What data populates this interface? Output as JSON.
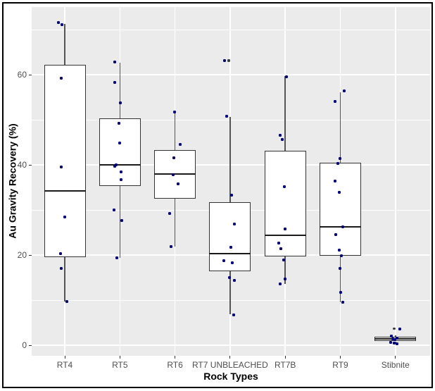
{
  "figure": {
    "background": "#ffffff",
    "frame_color": "#000000"
  },
  "chart_data": {
    "type": "boxplot",
    "title": "",
    "xlabel": "Rock Types",
    "ylabel": "Au Gravity Recovery (%)",
    "ylim": [
      -2.3,
      75.0
    ],
    "y_major_ticks": [
      0,
      20,
      40,
      60
    ],
    "y_minor_ticks": [
      10,
      30,
      50,
      70
    ],
    "grid": "on",
    "legend": "none",
    "colors": {
      "panel_bg": "#EBEBEB",
      "grid": "#FFFFFF",
      "box_fill": "#FFFFFF",
      "box_border": "#333333",
      "median": "#1a1a1a",
      "whisker": "#555555",
      "jitter_point": "#000080",
      "outlier_point": "#3d3d3d",
      "axis_text": "#4d4d4d",
      "axis_title": "#000000"
    },
    "categories": [
      "RT4",
      "RT5",
      "RT6",
      "RT7 UNBLEACHED",
      "RT7B",
      "RT9",
      "Stibnite"
    ],
    "boxes": [
      {
        "category": "RT4",
        "whisker_low": 9.7,
        "q1": 19.5,
        "median": 34.2,
        "q3": 62.2,
        "whisker_high": 71.3,
        "outliers": [],
        "points": [
          {
            "v": 71.5,
            "dx": -9
          },
          {
            "v": 71.1,
            "dx": -4
          },
          {
            "v": 59.3,
            "dx": -5
          },
          {
            "v": 39.5,
            "dx": -5
          },
          {
            "v": 28.5,
            "dx": 0
          },
          {
            "v": 20.4,
            "dx": -6
          },
          {
            "v": 17.0,
            "dx": -5
          },
          {
            "v": 9.7,
            "dx": 3
          }
        ]
      },
      {
        "category": "RT5",
        "whisker_low": 19.4,
        "q1": 35.3,
        "median": 40.0,
        "q3": 50.3,
        "whisker_high": 62.6,
        "outliers": [],
        "points": [
          {
            "v": 62.8,
            "dx": -7
          },
          {
            "v": 58.3,
            "dx": -7
          },
          {
            "v": 53.8,
            "dx": 1
          },
          {
            "v": 49.2,
            "dx": -1
          },
          {
            "v": 44.8,
            "dx": 0
          },
          {
            "v": 40.0,
            "dx": -5
          },
          {
            "v": 39.7,
            "dx": -7
          },
          {
            "v": 38.4,
            "dx": 2
          },
          {
            "v": 36.8,
            "dx": 2
          },
          {
            "v": 30.1,
            "dx": -8
          },
          {
            "v": 27.7,
            "dx": 3
          },
          {
            "v": 19.4,
            "dx": -4
          }
        ]
      },
      {
        "category": "RT6",
        "whisker_low": 21.9,
        "q1": 32.5,
        "median": 38.0,
        "q3": 43.3,
        "whisker_high": 51.8,
        "outliers": [],
        "points": [
          {
            "v": 51.8,
            "dx": -1
          },
          {
            "v": 44.5,
            "dx": 7
          },
          {
            "v": 41.6,
            "dx": -2
          },
          {
            "v": 37.9,
            "dx": -3
          },
          {
            "v": 35.8,
            "dx": 4
          },
          {
            "v": 29.3,
            "dx": -8
          },
          {
            "v": 21.9,
            "dx": -6
          }
        ]
      },
      {
        "category": "RT7 UNBLEACHED",
        "whisker_low": 6.9,
        "q1": 16.4,
        "median": 20.3,
        "q3": 31.7,
        "whisker_high": 50.6,
        "outliers": [
          {
            "v": 63.1,
            "dx": -2
          }
        ],
        "points": [
          {
            "v": 63.1,
            "dx": -8
          },
          {
            "v": 50.8,
            "dx": -5
          },
          {
            "v": 33.3,
            "dx": 2
          },
          {
            "v": 26.9,
            "dx": 6
          },
          {
            "v": 21.8,
            "dx": 1
          },
          {
            "v": 18.8,
            "dx": -9
          },
          {
            "v": 18.3,
            "dx": 3
          },
          {
            "v": 15.1,
            "dx": -1
          },
          {
            "v": 14.4,
            "dx": 6
          },
          {
            "v": 6.8,
            "dx": 5
          }
        ]
      },
      {
        "category": "RT7B",
        "whisker_low": 13.7,
        "q1": 19.7,
        "median": 24.4,
        "q3": 43.1,
        "whisker_high": 59.7,
        "outliers": [],
        "points": [
          {
            "v": 59.5,
            "dx": 2
          },
          {
            "v": 46.6,
            "dx": -7
          },
          {
            "v": 45.7,
            "dx": -4
          },
          {
            "v": 35.2,
            "dx": -1
          },
          {
            "v": 25.8,
            "dx": 0
          },
          {
            "v": 22.7,
            "dx": -9
          },
          {
            "v": 21.5,
            "dx": -6
          },
          {
            "v": 18.9,
            "dx": -2
          },
          {
            "v": 14.7,
            "dx": 0
          },
          {
            "v": 13.6,
            "dx": -7
          }
        ]
      },
      {
        "category": "RT9",
        "whisker_low": 9.5,
        "q1": 19.9,
        "median": 26.3,
        "q3": 40.5,
        "whisker_high": 56.1,
        "outliers": [],
        "points": [
          {
            "v": 56.4,
            "dx": 5
          },
          {
            "v": 54.0,
            "dx": -8
          },
          {
            "v": 41.4,
            "dx": -1
          },
          {
            "v": 40.4,
            "dx": -4
          },
          {
            "v": 36.5,
            "dx": -8
          },
          {
            "v": 34.0,
            "dx": -2
          },
          {
            "v": 26.2,
            "dx": 3
          },
          {
            "v": 24.6,
            "dx": -7
          },
          {
            "v": 21.2,
            "dx": -2
          },
          {
            "v": 19.8,
            "dx": 1
          },
          {
            "v": 17.0,
            "dx": -1
          },
          {
            "v": 11.8,
            "dx": 0
          },
          {
            "v": 9.5,
            "dx": 3
          }
        ]
      },
      {
        "category": "Stibnite",
        "whisker_low": 0.3,
        "q1": 0.9,
        "median": 1.4,
        "q3": 1.9,
        "whisker_high": 2.3,
        "outliers": [
          {
            "v": 3.7,
            "dx": -2
          }
        ],
        "points": [
          {
            "v": 3.7,
            "dx": 6
          },
          {
            "v": 2.1,
            "dx": -6
          },
          {
            "v": 1.6,
            "dx": 2
          },
          {
            "v": 1.45,
            "dx": -4
          },
          {
            "v": 1.3,
            "dx": -1
          },
          {
            "v": 0.6,
            "dx": -7
          },
          {
            "v": 0.5,
            "dx": -2
          },
          {
            "v": 0.4,
            "dx": 2
          }
        ]
      }
    ]
  }
}
